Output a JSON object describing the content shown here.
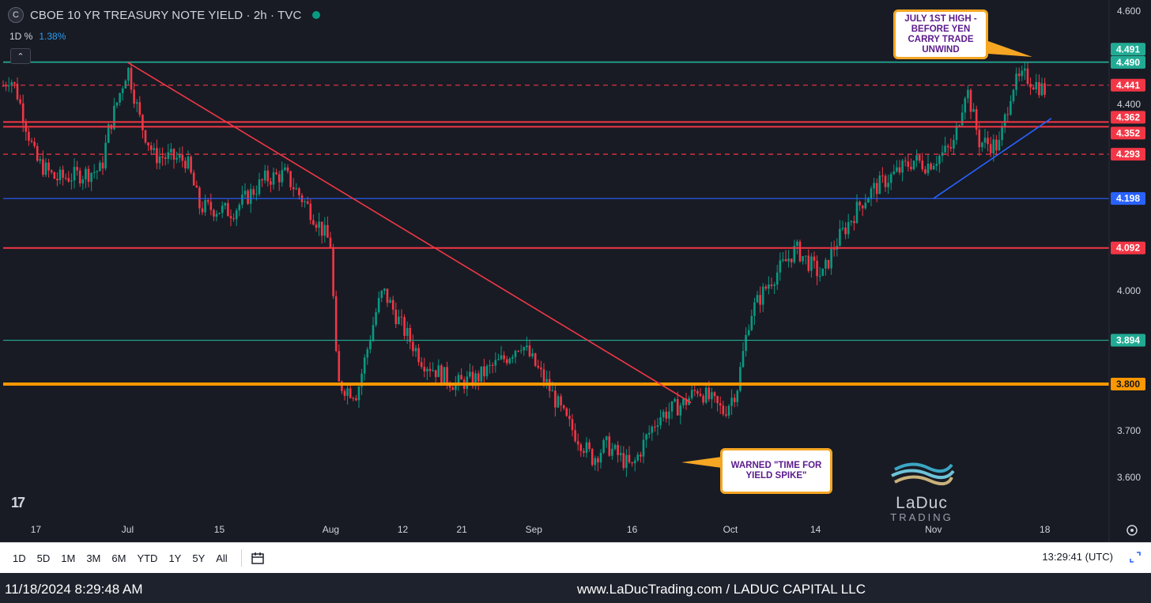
{
  "header": {
    "logo_letter": "C",
    "title": "CBOE 10 YR TREASURY NOTE YIELD · 2h · TVC",
    "change_label": "1D %",
    "change_value": "1.38%",
    "collapse_glyph": "⌃"
  },
  "callouts": {
    "top": "JULY 1ST HIGH - BEFORE YEN CARRY TRADE UNWIND",
    "bottom": "WARNED \"TIME FOR YIELD SPIKE\""
  },
  "watermark": {
    "name": "LaDuc",
    "sub": "TRADING"
  },
  "tv_logo": "17",
  "colors": {
    "background": "#181b24",
    "up_candle": "#089981",
    "down_candle": "#f23645",
    "trend_red": "#f23645",
    "support_blue": "#2962ff",
    "support_orange": "#ff9800",
    "teal_line": "#22ab94",
    "callout_border": "#f5a623",
    "callout_text": "#5b1a8c"
  },
  "toolbar": {
    "ranges": [
      "1D",
      "5D",
      "1M",
      "3M",
      "6M",
      "YTD",
      "1Y",
      "5Y",
      "All"
    ],
    "time": "13:29:41 (UTC)"
  },
  "footer": {
    "timestamp": "11/18/2024 8:29:48 AM",
    "brand": "www.LaDucTrading.com / LADUC CAPITAL LLC"
  },
  "chart_data": {
    "type": "candlestick",
    "ylim": [
      3.56,
      4.62
    ],
    "y_ticks": [
      "4.600",
      "4.400",
      "4.000",
      "3.700",
      "3.600"
    ],
    "x_ticks": [
      "17",
      "Jul",
      "15",
      "Aug",
      "12",
      "21",
      "Sep",
      "16",
      "Oct",
      "14",
      "Nov",
      "18"
    ],
    "price_path": [
      {
        "x": "Jun 12",
        "y": 4.44
      },
      {
        "x": "Jun 13",
        "y": 4.46
      },
      {
        "x": "Jun 14",
        "y": 4.43
      },
      {
        "x": "Jun 17",
        "y": 4.28
      },
      {
        "x": "Jun 20",
        "y": 4.24
      },
      {
        "x": "Jun 24",
        "y": 4.25
      },
      {
        "x": "Jun 27",
        "y": 4.26
      },
      {
        "x": "Jun 28",
        "y": 4.34
      },
      {
        "x": "Jul 1",
        "y": 4.48
      },
      {
        "x": "Jul 3",
        "y": 4.36
      },
      {
        "x": "Jul 5",
        "y": 4.29
      },
      {
        "x": "Jul 10",
        "y": 4.28
      },
      {
        "x": "Jul 12",
        "y": 4.18
      },
      {
        "x": "Jul 17",
        "y": 4.17
      },
      {
        "x": "Jul 22",
        "y": 4.24
      },
      {
        "x": "Jul 25",
        "y": 4.25
      },
      {
        "x": "Jul 29",
        "y": 4.17
      },
      {
        "x": "Aug 1",
        "y": 4.1
      },
      {
        "x": "Aug 2",
        "y": 3.8
      },
      {
        "x": "Aug 5",
        "y": 3.78
      },
      {
        "x": "Aug 8",
        "y": 3.96
      },
      {
        "x": "Aug 9",
        "y": 4.0
      },
      {
        "x": "Aug 12",
        "y": 3.92
      },
      {
        "x": "Aug 15",
        "y": 3.85
      },
      {
        "x": "Aug 20",
        "y": 3.8
      },
      {
        "x": "Aug 23",
        "y": 3.81
      },
      {
        "x": "Aug 28",
        "y": 3.86
      },
      {
        "x": "Aug 30",
        "y": 3.89
      },
      {
        "x": "Sep 3",
        "y": 3.8
      },
      {
        "x": "Sep 6",
        "y": 3.72
      },
      {
        "x": "Sep 10",
        "y": 3.64
      },
      {
        "x": "Sep 12",
        "y": 3.67
      },
      {
        "x": "Sep 16",
        "y": 3.62
      },
      {
        "x": "Sep 18",
        "y": 3.68
      },
      {
        "x": "Sep 20",
        "y": 3.73
      },
      {
        "x": "Sep 24",
        "y": 3.76
      },
      {
        "x": "Sep 26",
        "y": 3.79
      },
      {
        "x": "Sep 30",
        "y": 3.74
      },
      {
        "x": "Oct 2",
        "y": 3.79
      },
      {
        "x": "Oct 4",
        "y": 3.95
      },
      {
        "x": "Oct 7",
        "y": 4.02
      },
      {
        "x": "Oct 11",
        "y": 4.09
      },
      {
        "x": "Oct 15",
        "y": 4.03
      },
      {
        "x": "Oct 17",
        "y": 4.1
      },
      {
        "x": "Oct 21",
        "y": 4.19
      },
      {
        "x": "Oct 23",
        "y": 4.22
      },
      {
        "x": "Oct 25",
        "y": 4.24
      },
      {
        "x": "Oct 29",
        "y": 4.28
      },
      {
        "x": "Oct 31",
        "y": 4.27
      },
      {
        "x": "Nov 4",
        "y": 4.31
      },
      {
        "x": "Nov 6",
        "y": 4.44
      },
      {
        "x": "Nov 8",
        "y": 4.32
      },
      {
        "x": "Nov 11",
        "y": 4.31
      },
      {
        "x": "Nov 13",
        "y": 4.44
      },
      {
        "x": "Nov 15",
        "y": 4.46
      },
      {
        "x": "Nov 18",
        "y": 4.43
      }
    ],
    "horizontal_levels": [
      {
        "value": 4.491,
        "label": "4.491",
        "color": "#22ab94",
        "style": "solid"
      },
      {
        "value": 4.49,
        "label": "4.490",
        "color": "#22ab94",
        "style": "solid"
      },
      {
        "value": 4.441,
        "label": "4.441",
        "color": "#f23645",
        "style": "dashed"
      },
      {
        "value": 4.362,
        "label": "4.362",
        "color": "#f23645",
        "style": "solid"
      },
      {
        "value": 4.352,
        "label": "4.352",
        "color": "#f23645",
        "style": "solid"
      },
      {
        "value": 4.293,
        "label": "4.293",
        "color": "#f23645",
        "style": "dashed"
      },
      {
        "value": 4.198,
        "label": "4.198",
        "color": "#2962ff",
        "style": "solid"
      },
      {
        "value": 4.092,
        "label": "4.092",
        "color": "#f23645",
        "style": "solid"
      },
      {
        "value": 3.894,
        "label": "3.894",
        "color": "#22ab94",
        "style": "solid"
      },
      {
        "value": 3.8,
        "label": "3.800",
        "color": "#ff9800",
        "style": "thick"
      }
    ],
    "trendlines": [
      {
        "color": "#f23645",
        "from": {
          "x": "Jul 1",
          "y": 4.49
        },
        "to": {
          "x": "Sep 25",
          "y": 3.76
        }
      },
      {
        "color": "#2962ff",
        "from": {
          "x": "Nov 1",
          "y": 4.198
        },
        "to": {
          "x": "Nov 19",
          "y": 4.37
        }
      }
    ],
    "annotations": [
      "JULY 1ST HIGH - BEFORE YEN CARRY TRADE UNWIND",
      "WARNED \"TIME FOR YIELD SPIKE\""
    ]
  }
}
